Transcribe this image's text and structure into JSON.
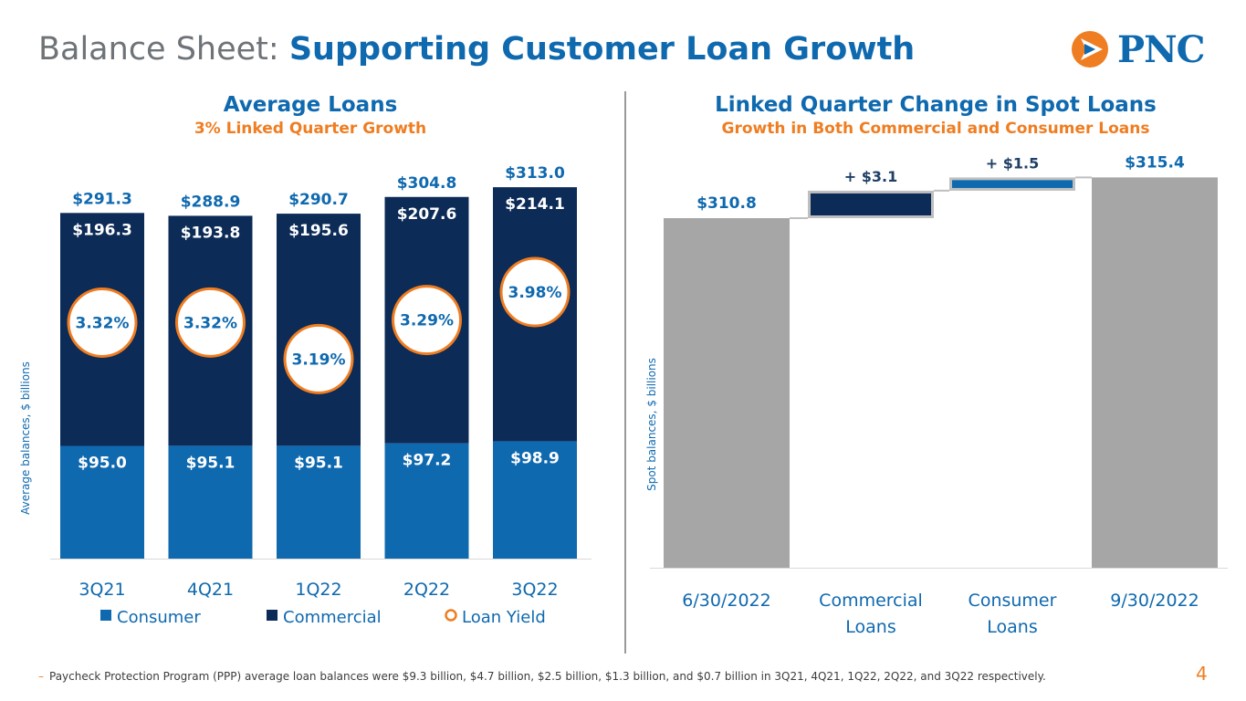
{
  "page": {
    "title_lead": "Balance Sheet:",
    "title_main": "Supporting Customer Loan Growth",
    "logo_text": "PNC",
    "page_number": "4",
    "footnote": "Paycheck Protection Program (PPP) average loan balances were $9.3 billion, $4.7 billion, $2.5 billion, $1.3 billion, and $0.7 billion in 3Q21, 4Q21, 1Q22, 2Q22, and 3Q22 respectively.",
    "colors": {
      "consumer": "#0f69af",
      "commercial": "#0c2b57",
      "yield_ring": "#ef7d21",
      "waterfall_total": "#a6a6a6",
      "title_blue": "#0f69af",
      "accent_orange": "#ef7d21"
    }
  },
  "chart_data": [
    {
      "type": "bar",
      "stacked": true,
      "title": "Average Loans",
      "subtitle": "3% Linked Quarter Growth",
      "ylabel": "Average balances, $ billions",
      "categories": [
        "3Q21",
        "4Q21",
        "1Q22",
        "2Q22",
        "3Q22"
      ],
      "series": [
        {
          "name": "Consumer",
          "values": [
            95.0,
            95.1,
            95.1,
            97.2,
            98.9
          ],
          "labels": [
            "$95.0",
            "$95.1",
            "$95.1",
            "$97.2",
            "$98.9"
          ]
        },
        {
          "name": "Commercial",
          "values": [
            196.3,
            193.8,
            195.6,
            207.6,
            214.1
          ],
          "labels": [
            "$196.3",
            "$193.8",
            "$195.6",
            "$207.6",
            "$214.1"
          ]
        }
      ],
      "totals": [
        291.3,
        288.9,
        290.7,
        304.8,
        313.0
      ],
      "total_labels": [
        "$291.3",
        "$288.9",
        "$290.7",
        "$304.8",
        "$313.0"
      ],
      "loan_yield": {
        "name": "Loan Yield",
        "values": [
          3.32,
          3.32,
          3.19,
          3.29,
          3.98
        ],
        "labels": [
          "3.32%",
          "3.32%",
          "3.19%",
          "3.29%",
          "3.98%"
        ]
      },
      "legend": [
        "Consumer",
        "Commercial",
        "Loan Yield"
      ],
      "legend_position": "bottom",
      "ylim": [
        0,
        330
      ],
      "grid": false
    },
    {
      "type": "bar",
      "subtype": "waterfall",
      "title": "Linked Quarter Change in Spot Loans",
      "subtitle": "Growth in Both Commercial and Consumer Loans",
      "ylabel": "Spot balances, $ billions",
      "categories": [
        "6/30/2022",
        "Commercial Loans",
        "Consumer Loans",
        "9/30/2022"
      ],
      "category_lines": [
        [
          "6/30/2022"
        ],
        [
          "Commercial",
          "Loans"
        ],
        [
          "Consumer",
          "Loans"
        ],
        [
          "9/30/2022"
        ]
      ],
      "steps": [
        {
          "kind": "total",
          "value": 310.8,
          "label": "$310.8"
        },
        {
          "kind": "delta",
          "value": 3.1,
          "label": "+ $3.1"
        },
        {
          "kind": "delta",
          "value": 1.5,
          "label": "+ $1.5"
        },
        {
          "kind": "total",
          "value": 315.4,
          "label": "$315.4"
        }
      ],
      "grid": false
    }
  ]
}
